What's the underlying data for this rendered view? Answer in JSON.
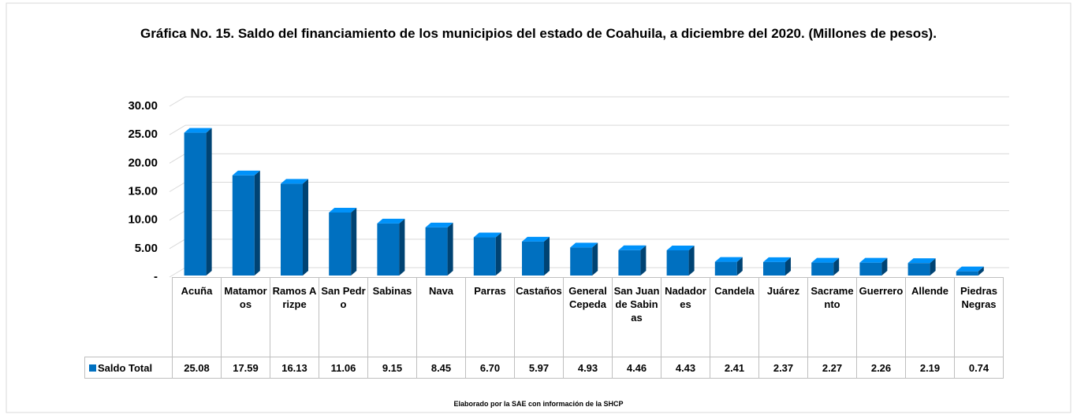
{
  "chart_data": {
    "type": "bar",
    "title": "Gráfica No. 15. Saldo del financiamiento de los municipios del estado de Coahuila, a diciembre del 2020. (Millones de pesos).",
    "categories": [
      "Acuña",
      "Matamoros",
      "Ramos Arizpe",
      "San Pedro",
      "Sabinas",
      "Nava",
      "Parras",
      "Castaños",
      "General Cepeda",
      "San Juan de Sabinas",
      "Nadadores",
      "Candela",
      "Juárez",
      "Sacramento",
      "Guerrero",
      "Allende",
      "Piedras Negras"
    ],
    "series": [
      {
        "name": "Saldo Total",
        "color": "#0070c0",
        "values": [
          25.08,
          17.59,
          16.13,
          11.06,
          9.15,
          8.45,
          6.7,
          5.97,
          4.93,
          4.46,
          4.43,
          2.41,
          2.37,
          2.27,
          2.26,
          2.19,
          0.74
        ],
        "value_labels": [
          "25.08",
          "17.59",
          "16.13",
          "11.06",
          "9.15",
          "8.45",
          "6.70",
          "5.97",
          "4.93",
          "4.46",
          "4.43",
          "2.41",
          "2.37",
          "2.27",
          "2.26",
          "2.19",
          "0.74"
        ]
      }
    ],
    "ylim": [
      0,
      30
    ],
    "yticks": [
      {
        "value": 0,
        "label": "-"
      },
      {
        "value": 5,
        "label": "5.00"
      },
      {
        "value": 10,
        "label": "10.00"
      },
      {
        "value": 15,
        "label": "15.00"
      },
      {
        "value": 20,
        "label": "20.00"
      },
      {
        "value": 25,
        "label": "25.00"
      },
      {
        "value": 30,
        "label": "30.00"
      }
    ],
    "grid": true,
    "footnote": "Elaborado por la SAE con información de  la SHCP"
  }
}
